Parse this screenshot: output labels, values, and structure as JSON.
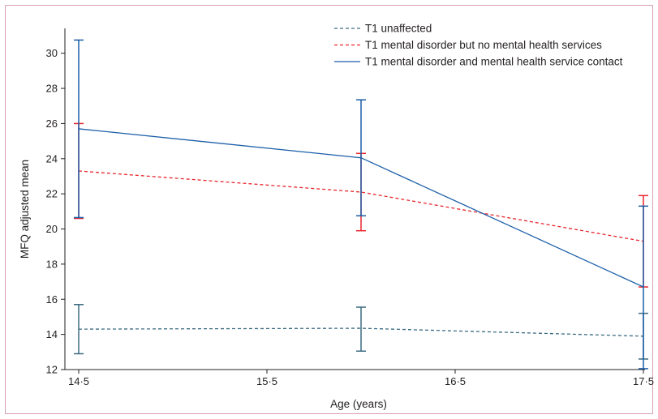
{
  "chart_data": {
    "type": "line",
    "title": "",
    "xlabel": "Age (years)",
    "ylabel": "MFQ adjusted mean",
    "x_ticks": [
      "14·5",
      "15·5",
      "16·5",
      "17·5"
    ],
    "x_tick_values": [
      14.5,
      15.5,
      16.5,
      17.5
    ],
    "xlim": [
      14.5,
      17.5
    ],
    "ylim": [
      12,
      31
    ],
    "y_ticks": [
      "12",
      "14",
      "16",
      "18",
      "20",
      "22",
      "24",
      "26",
      "28",
      "30"
    ],
    "y_tick_values": [
      12,
      14,
      16,
      18,
      20,
      22,
      24,
      26,
      28,
      30
    ],
    "legend_position": "top-right",
    "grid": false,
    "series": [
      {
        "name": "T1 unaffected",
        "color": "#3a6a80",
        "style": "dashed",
        "x": [
          14.5,
          16.0,
          17.5
        ],
        "y": [
          14.3,
          14.35,
          13.9
        ],
        "error_low": [
          12.9,
          13.05,
          12.6
        ],
        "error_high": [
          15.7,
          15.55,
          15.2
        ]
      },
      {
        "name": "T1 mental disorder but no mental health services",
        "color": "#e8262d",
        "style": "dashed",
        "x": [
          14.5,
          16.0,
          17.5
        ],
        "y": [
          23.3,
          22.1,
          19.3
        ],
        "error_low": [
          20.6,
          19.9,
          16.7
        ],
        "error_high": [
          26.0,
          24.3,
          21.9
        ]
      },
      {
        "name": "T1 mental disorder and mental health service contact",
        "color": "#1b5ea8",
        "style": "solid",
        "x": [
          14.5,
          16.0,
          17.5
        ],
        "y": [
          25.7,
          24.05,
          16.7
        ],
        "error_low": [
          20.65,
          20.75,
          12.05
        ],
        "error_high": [
          30.75,
          27.35,
          21.3
        ]
      }
    ]
  }
}
